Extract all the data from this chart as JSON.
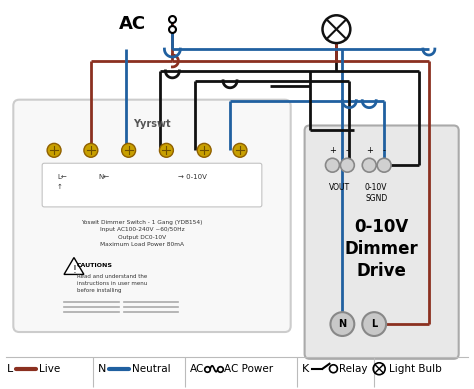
{
  "bg_color": "#ffffff",
  "live_color": "#8B3020",
  "neutral_color": "#2060A0",
  "black_color": "#111111",
  "switch_box_color": "#f8f8f8",
  "driver_box_color": "#e8e8e8",
  "legend": {
    "L_label": "Live",
    "N_label": "Neutral",
    "AC_label": "AC Power",
    "K_label": "Relay",
    "bulb_label": "Light Bulb"
  },
  "switch_text_lines": [
    "Yoswit Dimmer Switch - 1 Gang (YDB154)",
    "Input AC100-240V ~60/50Hz",
    "Output DC0-10V",
    "Maximum Load Power 80mA"
  ],
  "driver_label_lines": [
    "0-10V",
    "Dimmer",
    "Drive"
  ],
  "ac_label": "AC",
  "vout_label": "VOUT",
  "sgnd_label": "0-10V\nSGND",
  "brand_label": "Yyrswt"
}
